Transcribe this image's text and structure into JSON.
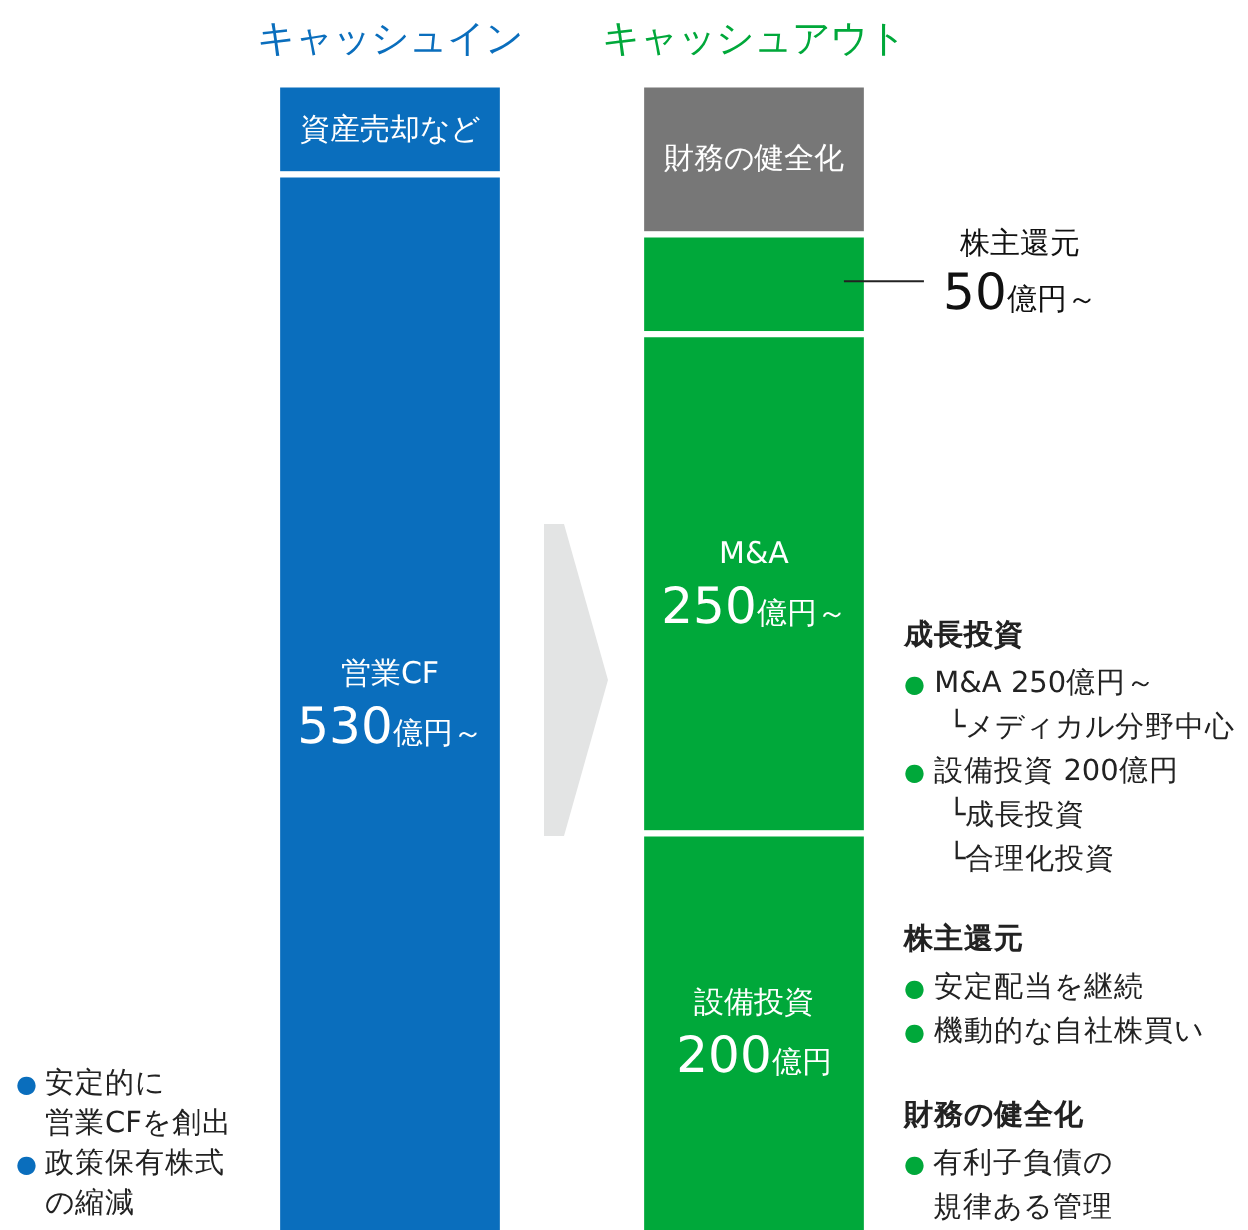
{
  "chart_data": {
    "type": "bar",
    "stacked": true,
    "categories": [
      "キャッシュイン",
      "キャッシュアウト"
    ],
    "ylim": [
      0,
      575
    ],
    "legend": false,
    "grid": false,
    "series": [
      {
        "colors": [
          "#0a6ebd",
          "#00a83a"
        ],
        "values": [
          530,
          200
        ],
        "value_labels": [
          "営業CF\n530億円～",
          "設備投資\n200億円"
        ]
      },
      {
        "colors": [
          "#0a6ebd",
          "#00a83a"
        ],
        "values": [
          45,
          250
        ],
        "value_labels": [
          "資産売却など",
          "M&A\n250億円～"
        ]
      },
      {
        "colors": [
          "#0a6ebd",
          "#00a83a"
        ],
        "values": [
          null,
          50
        ],
        "value_labels": [
          null,
          "株主還元\n50億円～"
        ]
      },
      {
        "colors": [
          "#0a6ebd",
          "#777777"
        ],
        "values": [
          null,
          75
        ],
        "value_labels": [
          null,
          "財務の健全化"
        ]
      }
    ],
    "annotations": [
      "成長投資\n● M&A 250億円～\n└メディカル分野中心\n● 設備投資 200億円\n└成長投資\n└合理化投資",
      "株主還元\n● 安定配当を継続\n● 機動的な自社株買い",
      "財務の健全化\n● 有利子負債の規律ある管理",
      "● 安定的に営業CFを創出\n● 政策保有株式の縮減"
    ]
  }
}
